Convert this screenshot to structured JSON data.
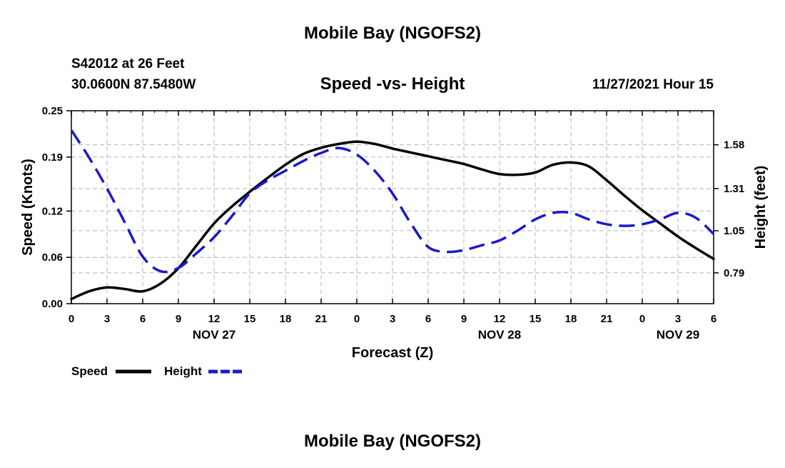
{
  "header": {
    "title": "Mobile Bay (NGOFS2)",
    "station": "S42012 at 26 Feet",
    "coords": "30.0600N  87.5480W",
    "subtitle": "Speed -vs- Height",
    "datetime": "11/27/2021 Hour 15",
    "bottom_title": "Mobile Bay (NGOFS2)"
  },
  "legend": {
    "speed_label": "Speed",
    "height_label": "Height"
  },
  "colors": {
    "speed": "#000000",
    "height": "#1a1acc",
    "grid": "#b4b4b4"
  },
  "chart_data": {
    "type": "line",
    "title": "Speed -vs- Height",
    "xlabel": "Forecast (Z)",
    "ylabel": "Speed (Knots)",
    "y2label": "Height (feet)",
    "x_range_hours": [
      0,
      54
    ],
    "x_ticks": [
      {
        "h": 0,
        "label": "0"
      },
      {
        "h": 3,
        "label": "3"
      },
      {
        "h": 6,
        "label": "6"
      },
      {
        "h": 9,
        "label": "9"
      },
      {
        "h": 12,
        "label": "12"
      },
      {
        "h": 15,
        "label": "15"
      },
      {
        "h": 18,
        "label": "18"
      },
      {
        "h": 21,
        "label": "21"
      },
      {
        "h": 24,
        "label": "0"
      },
      {
        "h": 27,
        "label": "3"
      },
      {
        "h": 30,
        "label": "6"
      },
      {
        "h": 33,
        "label": "9"
      },
      {
        "h": 36,
        "label": "12"
      },
      {
        "h": 39,
        "label": "15"
      },
      {
        "h": 42,
        "label": "18"
      },
      {
        "h": 45,
        "label": "21"
      },
      {
        "h": 48,
        "label": "0"
      },
      {
        "h": 51,
        "label": "3"
      },
      {
        "h": 54,
        "label": "6"
      }
    ],
    "date_labels": [
      {
        "h": 12,
        "label": "NOV 27"
      },
      {
        "h": 36,
        "label": "NOV 28"
      },
      {
        "h": 51,
        "label": "NOV 29"
      }
    ],
    "ylim": [
      0,
      0.25
    ],
    "y_ticks": [
      "0.00",
      "0.06",
      "0.12",
      "0.19",
      "0.25"
    ],
    "y2lim": [
      0.6,
      1.79
    ],
    "y2_ticks": [
      "0.79",
      "1.05",
      "1.31",
      "1.58"
    ],
    "series": [
      {
        "name": "Speed",
        "axis": "left",
        "style": "solid",
        "x": [
          0,
          1.5,
          3,
          4.5,
          6,
          7.5,
          9,
          10.5,
          12,
          13.5,
          15,
          16.5,
          18,
          19.5,
          21,
          22.5,
          24,
          25.5,
          27,
          28.5,
          30,
          31.5,
          33,
          34.5,
          36,
          37.5,
          39,
          40.5,
          42,
          43.5,
          45,
          46.5,
          48,
          49.5,
          51,
          52.5,
          54
        ],
        "values": [
          0.006,
          0.016,
          0.021,
          0.019,
          0.016,
          0.026,
          0.046,
          0.075,
          0.104,
          0.126,
          0.145,
          0.163,
          0.18,
          0.194,
          0.202,
          0.207,
          0.21,
          0.207,
          0.201,
          0.196,
          0.191,
          0.186,
          0.181,
          0.174,
          0.168,
          0.167,
          0.17,
          0.18,
          0.183,
          0.178,
          0.16,
          0.14,
          0.121,
          0.104,
          0.087,
          0.072,
          0.058
        ]
      },
      {
        "name": "Height",
        "axis": "right",
        "style": "dashed",
        "x": [
          0,
          1.5,
          3,
          4.5,
          6,
          7.5,
          9,
          10.5,
          12,
          13.5,
          15,
          16.5,
          18,
          19.5,
          21,
          22.5,
          24,
          25.5,
          27,
          28.5,
          30,
          31.5,
          33,
          34.5,
          36,
          37.5,
          39,
          40.5,
          42,
          43.5,
          45,
          46.5,
          48,
          49.5,
          51,
          52.5,
          54
        ],
        "values": [
          1.67,
          1.5,
          1.31,
          1.1,
          0.89,
          0.8,
          0.82,
          0.91,
          1.01,
          1.14,
          1.28,
          1.36,
          1.42,
          1.48,
          1.53,
          1.56,
          1.52,
          1.42,
          1.28,
          1.1,
          0.95,
          0.92,
          0.93,
          0.96,
          0.99,
          1.05,
          1.12,
          1.16,
          1.16,
          1.12,
          1.09,
          1.08,
          1.09,
          1.12,
          1.16,
          1.13,
          1.03
        ]
      }
    ]
  }
}
